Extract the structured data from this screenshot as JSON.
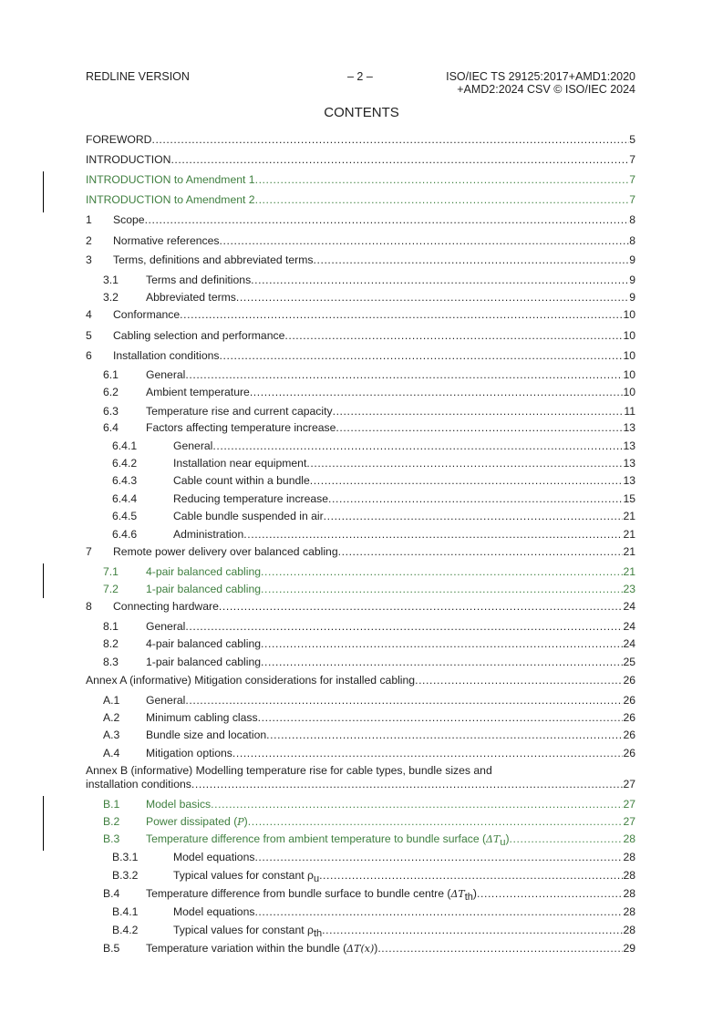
{
  "header": {
    "left": "REDLINE VERSION",
    "center": "– 2 –",
    "right_line1": "ISO/IEC TS 29125:2017+AMD1:2020",
    "right_line2": "+AMD2:2024  CSV © ISO/IEC 2024"
  },
  "title": "CONTENTS",
  "colors": {
    "text": "#222222",
    "amendment_green": "#3f7f3f",
    "change_bar": "#000000"
  },
  "toc": [
    {
      "num": "",
      "title": "FOREWORD",
      "page": "5",
      "level": 0
    },
    {
      "num": "",
      "title": "INTRODUCTION",
      "page": "7",
      "level": 0
    },
    {
      "num": "",
      "title": "INTRODUCTION to Amendment 1",
      "page": "7",
      "level": 0,
      "amended": true
    },
    {
      "num": "",
      "title": "INTRODUCTION to Amendment 2",
      "page": "7",
      "level": 0,
      "amended": true
    },
    {
      "num": "1",
      "title": "Scope",
      "page": "8",
      "level": 1
    },
    {
      "num": "2",
      "title": "Normative references",
      "page": "8",
      "level": 1
    },
    {
      "num": "3",
      "title": "Terms, definitions and abbreviated terms",
      "page": "9",
      "level": 1
    },
    {
      "num": "3.1",
      "title": "Terms and definitions",
      "page": "9",
      "level": 2
    },
    {
      "num": "3.2",
      "title": "Abbreviated terms",
      "page": "9",
      "level": 2
    },
    {
      "num": "4",
      "title": "Conformance",
      "page": "10",
      "level": 1
    },
    {
      "num": "5",
      "title": "Cabling selection and performance",
      "page": "10",
      "level": 1
    },
    {
      "num": "6",
      "title": "Installation conditions",
      "page": "10",
      "level": 1
    },
    {
      "num": "6.1",
      "title": "General",
      "page": "10",
      "level": 2
    },
    {
      "num": "6.2",
      "title": "Ambient temperature",
      "page": "10",
      "level": 2
    },
    {
      "num": "6.3",
      "title": "Temperature rise and current capacity",
      "page": "11",
      "level": 2
    },
    {
      "num": "6.4",
      "title": "Factors affecting temperature increase",
      "page": "13",
      "level": 2
    },
    {
      "num": "6.4.1",
      "title": "General",
      "page": "13",
      "level": 3
    },
    {
      "num": "6.4.2",
      "title": "Installation near equipment",
      "page": "13",
      "level": 3
    },
    {
      "num": "6.4.3",
      "title": "Cable count within a bundle",
      "page": "13",
      "level": 3
    },
    {
      "num": "6.4.4",
      "title": "Reducing temperature increase",
      "page": "15",
      "level": 3
    },
    {
      "num": "6.4.5",
      "title": "Cable bundle suspended in air",
      "page": "21",
      "level": 3
    },
    {
      "num": "6.4.6",
      "title": "Administration",
      "page": "21",
      "level": 3
    },
    {
      "num": "7",
      "title": "Remote power delivery over balanced cabling",
      "page": "21",
      "level": 1
    },
    {
      "num": "7.1",
      "title": "4-pair balanced cabling",
      "page": "21",
      "level": 2,
      "amended": true
    },
    {
      "num": "7.2",
      "title": "1-pair balanced cabling",
      "page": "23",
      "level": 2,
      "amended": true
    },
    {
      "num": "8",
      "title": "Connecting hardware",
      "page": "24",
      "level": 1
    },
    {
      "num": "8.1",
      "title": "General",
      "page": "24",
      "level": 2
    },
    {
      "num": "8.2",
      "title": "4-pair balanced cabling",
      "page": "24",
      "level": 2
    },
    {
      "num": "8.3",
      "title": "1-pair balanced cabling",
      "page": "25",
      "level": 2
    },
    {
      "num": "",
      "title": "Annex A (informative)  Mitigation considerations for installed cabling",
      "page": "26",
      "level": 0
    },
    {
      "num": "A.1",
      "title": "General",
      "page": "26",
      "level": 2
    },
    {
      "num": "A.2",
      "title": "Minimum cabling class",
      "page": "26",
      "level": 2
    },
    {
      "num": "A.3",
      "title": "Bundle size and location",
      "page": "26",
      "level": 2
    },
    {
      "num": "A.4",
      "title": "Mitigation options",
      "page": "26",
      "level": 2
    },
    {
      "num": "",
      "title_line1": "Annex B (informative)  Modelling temperature rise for cable types,  bundle sizes and",
      "title": "installation conditions ",
      "page": "27",
      "level": 0
    },
    {
      "num": "B.1",
      "title": "Model basics",
      "page": "27",
      "level": 2,
      "amended": true
    },
    {
      "num": "B.2",
      "title": "Power dissipated (",
      "math": "P",
      "after": ")",
      "page": "27",
      "level": 2,
      "amended": true
    },
    {
      "num": "B.3",
      "title": "Temperature difference from ambient temperature to bundle surface (",
      "math": "ΔT",
      "sub": "u",
      "after": ")",
      "page": "28",
      "level": 2,
      "amended": true
    },
    {
      "num": "B.3.1",
      "title": "Model equations ",
      "page": "28",
      "level": 3
    },
    {
      "num": "B.3.2",
      "title": "Typical values for constant ρ",
      "sub": "u",
      "after": " ",
      "page": "28",
      "level": 3
    },
    {
      "num": "B.4",
      "title": "Temperature difference from bundle surface to bundle centre (",
      "math": "ΔT",
      "sub": "th",
      "after": ")",
      "page": "28",
      "level": 2
    },
    {
      "num": "B.4.1",
      "title": "Model equations ",
      "page": "28",
      "level": 3
    },
    {
      "num": "B.4.2",
      "title": "Typical values for constant ρ",
      "sub": "th",
      "after": " ",
      "page": "28",
      "level": 3
    },
    {
      "num": "B.5",
      "title": "Temperature variation within the bundle (",
      "math": "ΔT(x)",
      "after": ") ",
      "page": "29",
      "level": 2
    }
  ]
}
